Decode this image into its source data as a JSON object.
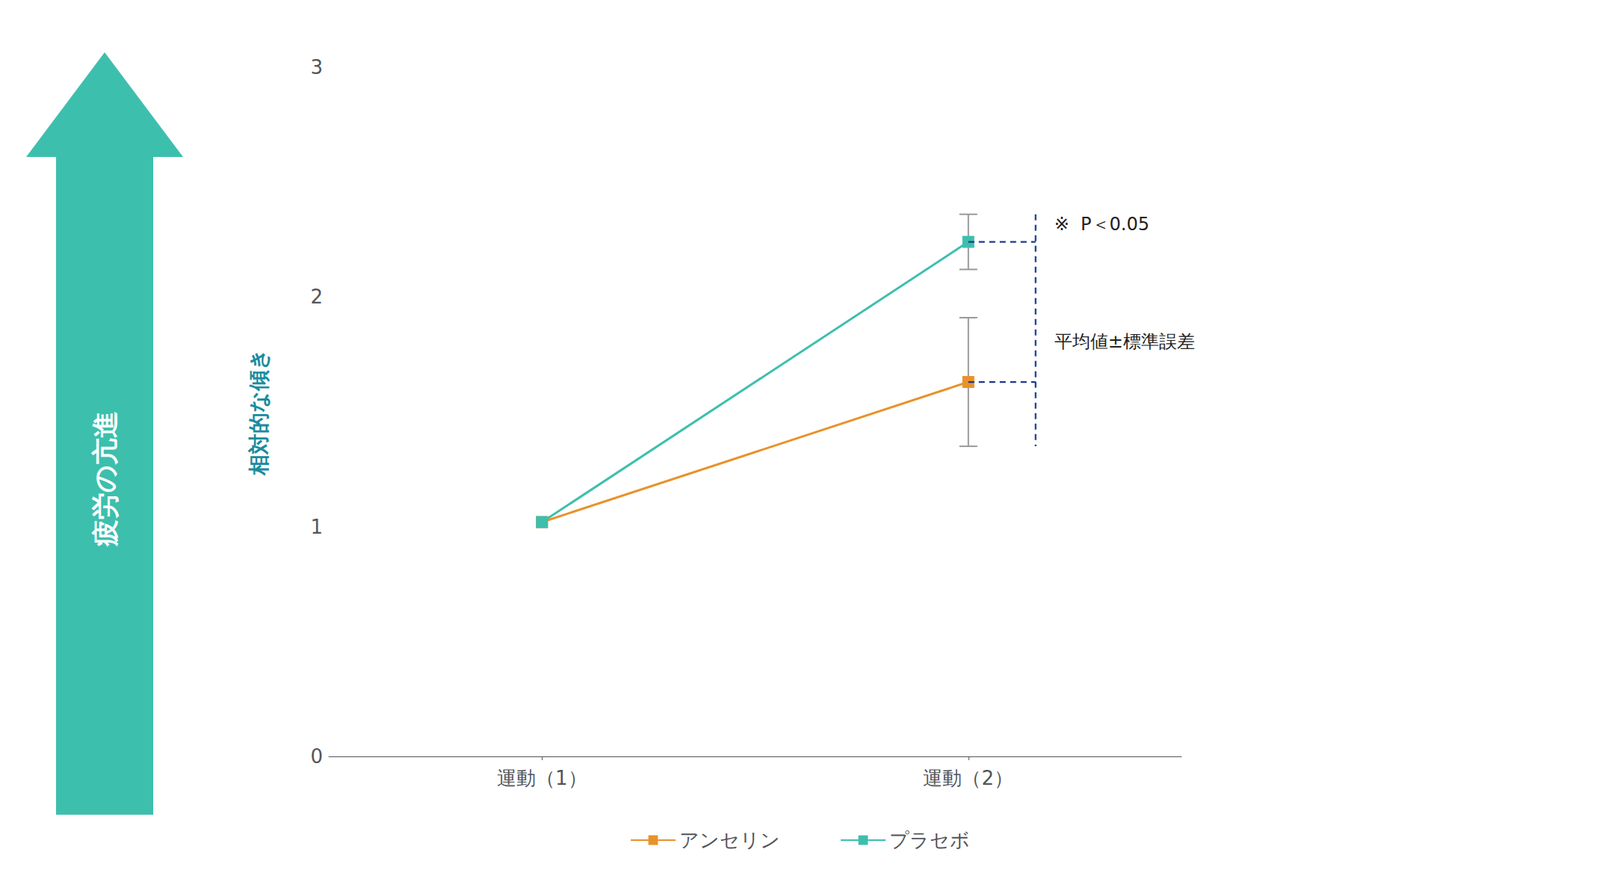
{
  "chart_data": {
    "type": "line",
    "categories": [
      "運動（1）",
      "運動（2）"
    ],
    "series": [
      {
        "name": "アンセリン",
        "color": "#E8922A",
        "values": [
          1.02,
          1.63
        ],
        "errors": [
          0.0,
          0.28
        ],
        "marker": "square"
      },
      {
        "name": "プラセボ",
        "color": "#3DBFAD",
        "values": [
          1.02,
          2.24
        ],
        "errors": [
          0.0,
          0.12
        ],
        "marker": "square"
      }
    ],
    "ylim": [
      0,
      3
    ],
    "yticks": [
      0,
      1,
      2,
      3
    ],
    "y_label": "相対的な傾き",
    "annotations": [
      "※  P＜0.05",
      "平均値±標準誤差",
      "疲労の亢進"
    ],
    "grid": false,
    "legend": "bottom"
  }
}
